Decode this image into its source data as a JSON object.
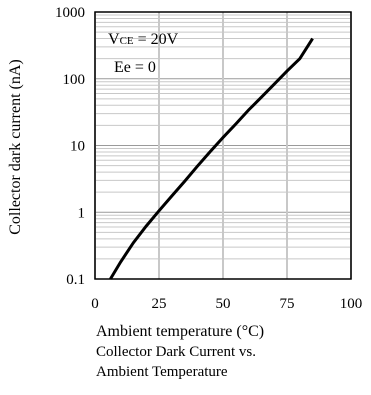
{
  "chart_data": {
    "type": "line",
    "title": "",
    "xlabel": "Ambient temperature (°C)",
    "ylabel": "Collector dark current (nA)",
    "xlim": [
      0,
      100
    ],
    "ylim": [
      0.1,
      1000
    ],
    "yscale": "log",
    "grid": true,
    "x_ticks": [
      0,
      25,
      50,
      75,
      100
    ],
    "x_tick_labels": [
      "0",
      "25",
      "50",
      "75",
      "100"
    ],
    "y_ticks": [
      0.1,
      1,
      10,
      100,
      1000
    ],
    "y_tick_labels": [
      "0.1",
      "1",
      "10",
      "100",
      "1000"
    ],
    "annotations": {
      "vce_prefix": "V",
      "vce_subscript": "CE",
      "vce_value": " = 20V",
      "ee": "Ee = 0"
    },
    "series": [
      {
        "color": "#000000",
        "x": [
          6,
          10,
          15,
          20,
          25,
          30,
          35,
          40,
          45,
          50,
          55,
          60,
          65,
          70,
          75,
          80,
          85
        ],
        "y": [
          0.1,
          0.18,
          0.35,
          0.62,
          1.05,
          1.75,
          2.9,
          4.9,
          8.1,
          13.2,
          21,
          34,
          53,
          83,
          130,
          200,
          400
        ]
      }
    ]
  },
  "caption": {
    "line1": "Collector  Dark  Current vs.",
    "line2": "Ambient Temperature"
  }
}
